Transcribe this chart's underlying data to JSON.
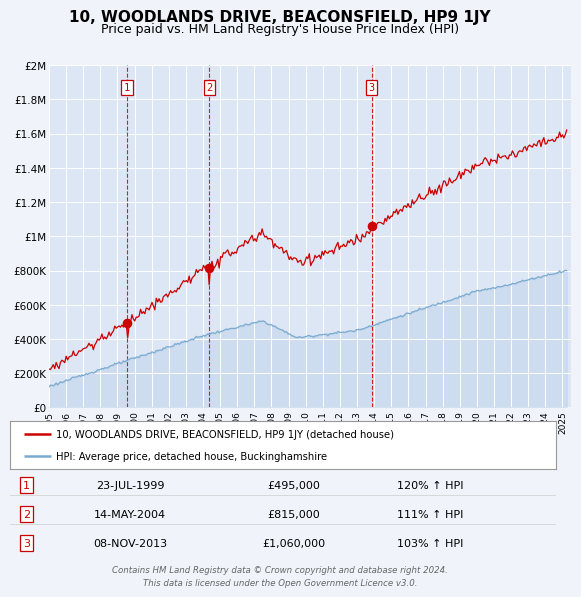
{
  "title": "10, WOODLANDS DRIVE, BEACONSFIELD, HP9 1JY",
  "subtitle": "Price paid vs. HM Land Registry's House Price Index (HPI)",
  "title_fontsize": 11,
  "subtitle_fontsize": 9,
  "background_color": "#f0f4fa",
  "plot_bg_color": "#dce6f5",
  "grid_color": "#ffffff",
  "ylim": [
    0,
    2000000
  ],
  "xlim_start": 1995.0,
  "xlim_end": 2025.5,
  "yticks": [
    0,
    200000,
    400000,
    600000,
    800000,
    1000000,
    1200000,
    1400000,
    1600000,
    1800000,
    2000000
  ],
  "ytick_labels": [
    "£0",
    "£200K",
    "£400K",
    "£600K",
    "£800K",
    "£1M",
    "£1.2M",
    "£1.4M",
    "£1.6M",
    "£1.8M",
    "£2M"
  ],
  "xtick_years": [
    1995,
    1996,
    1997,
    1998,
    1999,
    2000,
    2001,
    2002,
    2003,
    2004,
    2005,
    2006,
    2007,
    2008,
    2009,
    2010,
    2011,
    2012,
    2013,
    2014,
    2015,
    2016,
    2017,
    2018,
    2019,
    2020,
    2021,
    2022,
    2023,
    2024,
    2025
  ],
  "sale_dates": [
    1999.56,
    2004.37,
    2013.85
  ],
  "sale_prices": [
    495000,
    815000,
    1060000
  ],
  "sale_labels": [
    "1",
    "2",
    "3"
  ],
  "red_line_color": "#cc0000",
  "blue_line_color": "#7aaad0",
  "legend_line1": "10, WOODLANDS DRIVE, BEACONSFIELD, HP9 1JY (detached house)",
  "legend_line2": "HPI: Average price, detached house, Buckinghamshire",
  "table_rows": [
    [
      "1",
      "23-JUL-1999",
      "£495,000",
      "120% ↑ HPI"
    ],
    [
      "2",
      "14-MAY-2004",
      "£815,000",
      "111% ↑ HPI"
    ],
    [
      "3",
      "08-NOV-2013",
      "£1,060,000",
      "103% ↑ HPI"
    ]
  ],
  "footer_text": "Contains HM Land Registry data © Crown copyright and database right 2024.\nThis data is licensed under the Open Government Licence v3.0."
}
